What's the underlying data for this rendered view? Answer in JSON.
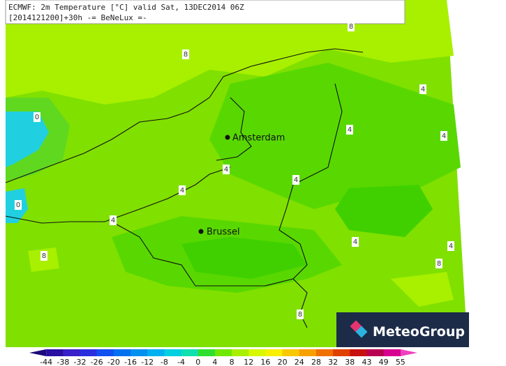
{
  "header": {
    "title": "ECMWF: 2m Temperature [°C] valid Sat, 13DEC2014 06Z",
    "subtitle": "[2014121200]+30h -= BeNeLux =-"
  },
  "cities": [
    {
      "label": "Amsterdam"
    },
    {
      "label": "Brussel"
    }
  ],
  "contour_labels": [
    "8",
    "8",
    "0",
    "4",
    "4",
    "4",
    "4",
    "4",
    "4",
    "0",
    "4",
    "4",
    "4",
    "8",
    "8",
    "8"
  ],
  "colorbar": {
    "ticks": [
      -44,
      -38,
      -32,
      -26,
      -20,
      -16,
      -12,
      -8,
      -4,
      0,
      4,
      8,
      12,
      16,
      20,
      24,
      28,
      32,
      38,
      43,
      49,
      55
    ],
    "colors": [
      "#1a0a7a",
      "#2a10a0",
      "#3a20c8",
      "#2a30e0",
      "#1050f0",
      "#0070f0",
      "#0090f0",
      "#00b0f0",
      "#00d0e0",
      "#10e0b0",
      "#30e030",
      "#70e800",
      "#a8f000",
      "#d8f800",
      "#f8f000",
      "#f8c800",
      "#f8a000",
      "#f07000",
      "#e04000",
      "#c81010",
      "#b80050",
      "#d80090",
      "#f040c0"
    ]
  },
  "logo": "MeteoGroup"
}
